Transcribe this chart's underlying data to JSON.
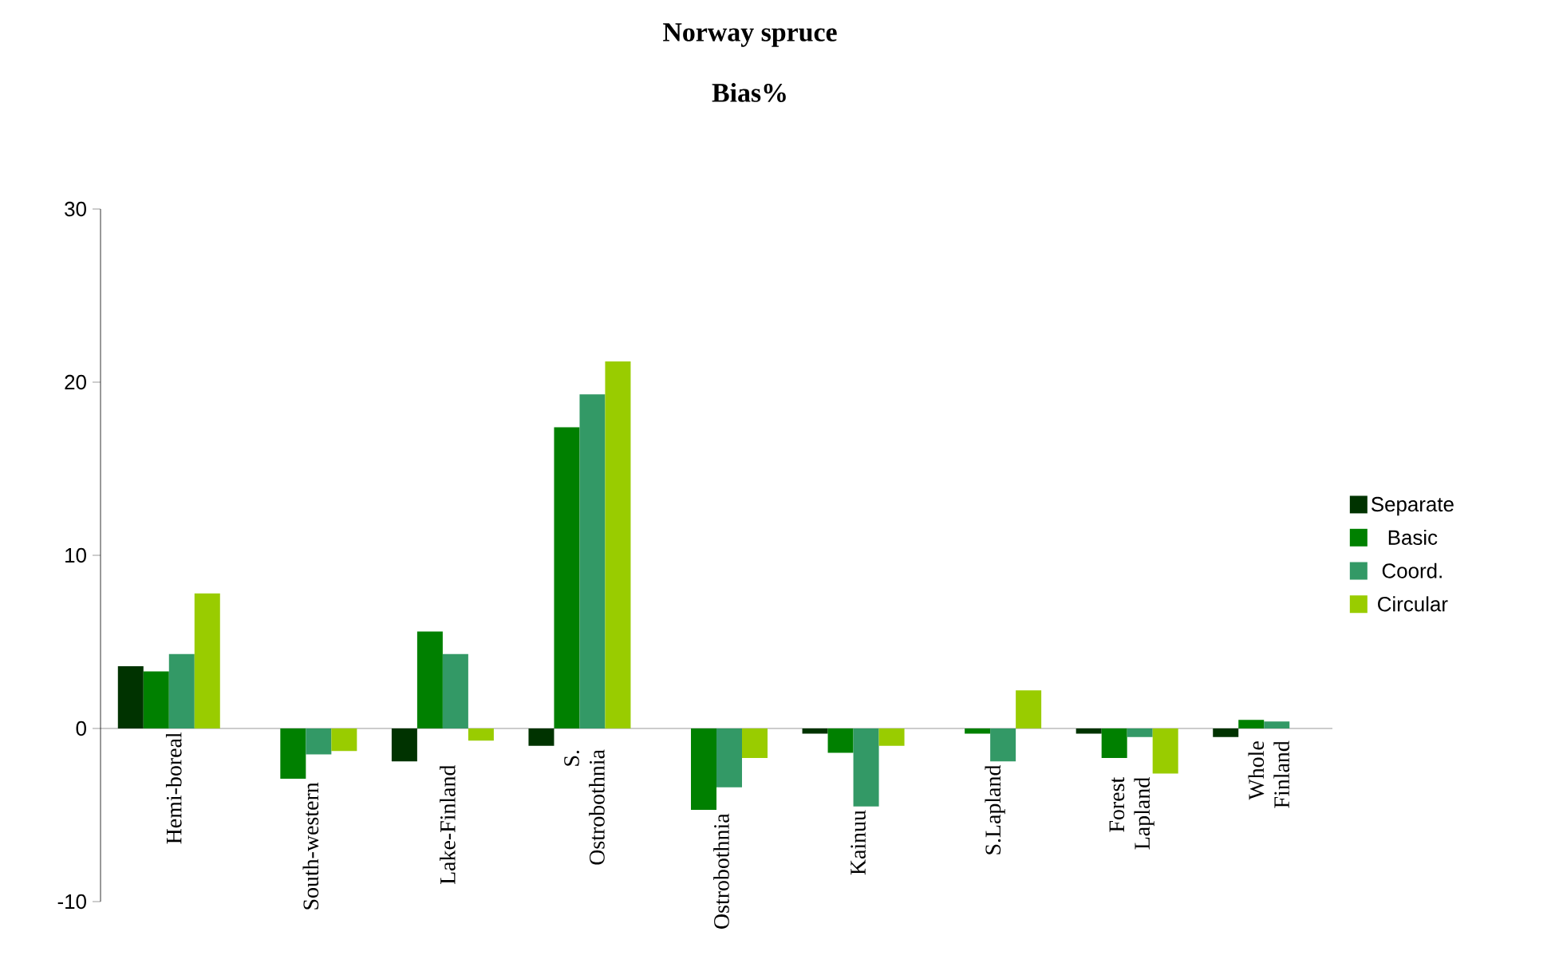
{
  "chart_data": {
    "type": "bar",
    "title": "Norway spruce",
    "subtitle": "Bias%",
    "categories": [
      "Hemi-boreal",
      "South-western",
      "Lake-Finland",
      "S. Ostrobothnia",
      "Ostrobothnia",
      "Kainuu",
      "S.Lapland",
      "Forest Lapland",
      "Whole Finland"
    ],
    "series": [
      {
        "name": "Separate",
        "color": "#003300",
        "values": [
          3.6,
          0,
          -1.9,
          -1.0,
          0,
          -0.3,
          0,
          -0.3,
          -0.5
        ]
      },
      {
        "name": "Basic",
        "color": "#008000",
        "values": [
          3.3,
          -2.9,
          5.6,
          17.4,
          -4.7,
          -1.4,
          -0.3,
          -1.7,
          0.5
        ]
      },
      {
        "name": "Coord.",
        "color": "#339966",
        "values": [
          4.3,
          -1.5,
          4.3,
          19.3,
          -3.4,
          -4.5,
          -1.9,
          -0.5,
          0.4
        ]
      },
      {
        "name": "Circular",
        "color": "#99cc00",
        "values": [
          7.8,
          -1.3,
          -0.7,
          21.2,
          -1.7,
          -1.0,
          2.2,
          -2.6,
          0
        ]
      }
    ],
    "ylim": [
      -10,
      30
    ],
    "yticks": [
      -10,
      0,
      10,
      20,
      30
    ],
    "grid": false,
    "legend": "right"
  }
}
